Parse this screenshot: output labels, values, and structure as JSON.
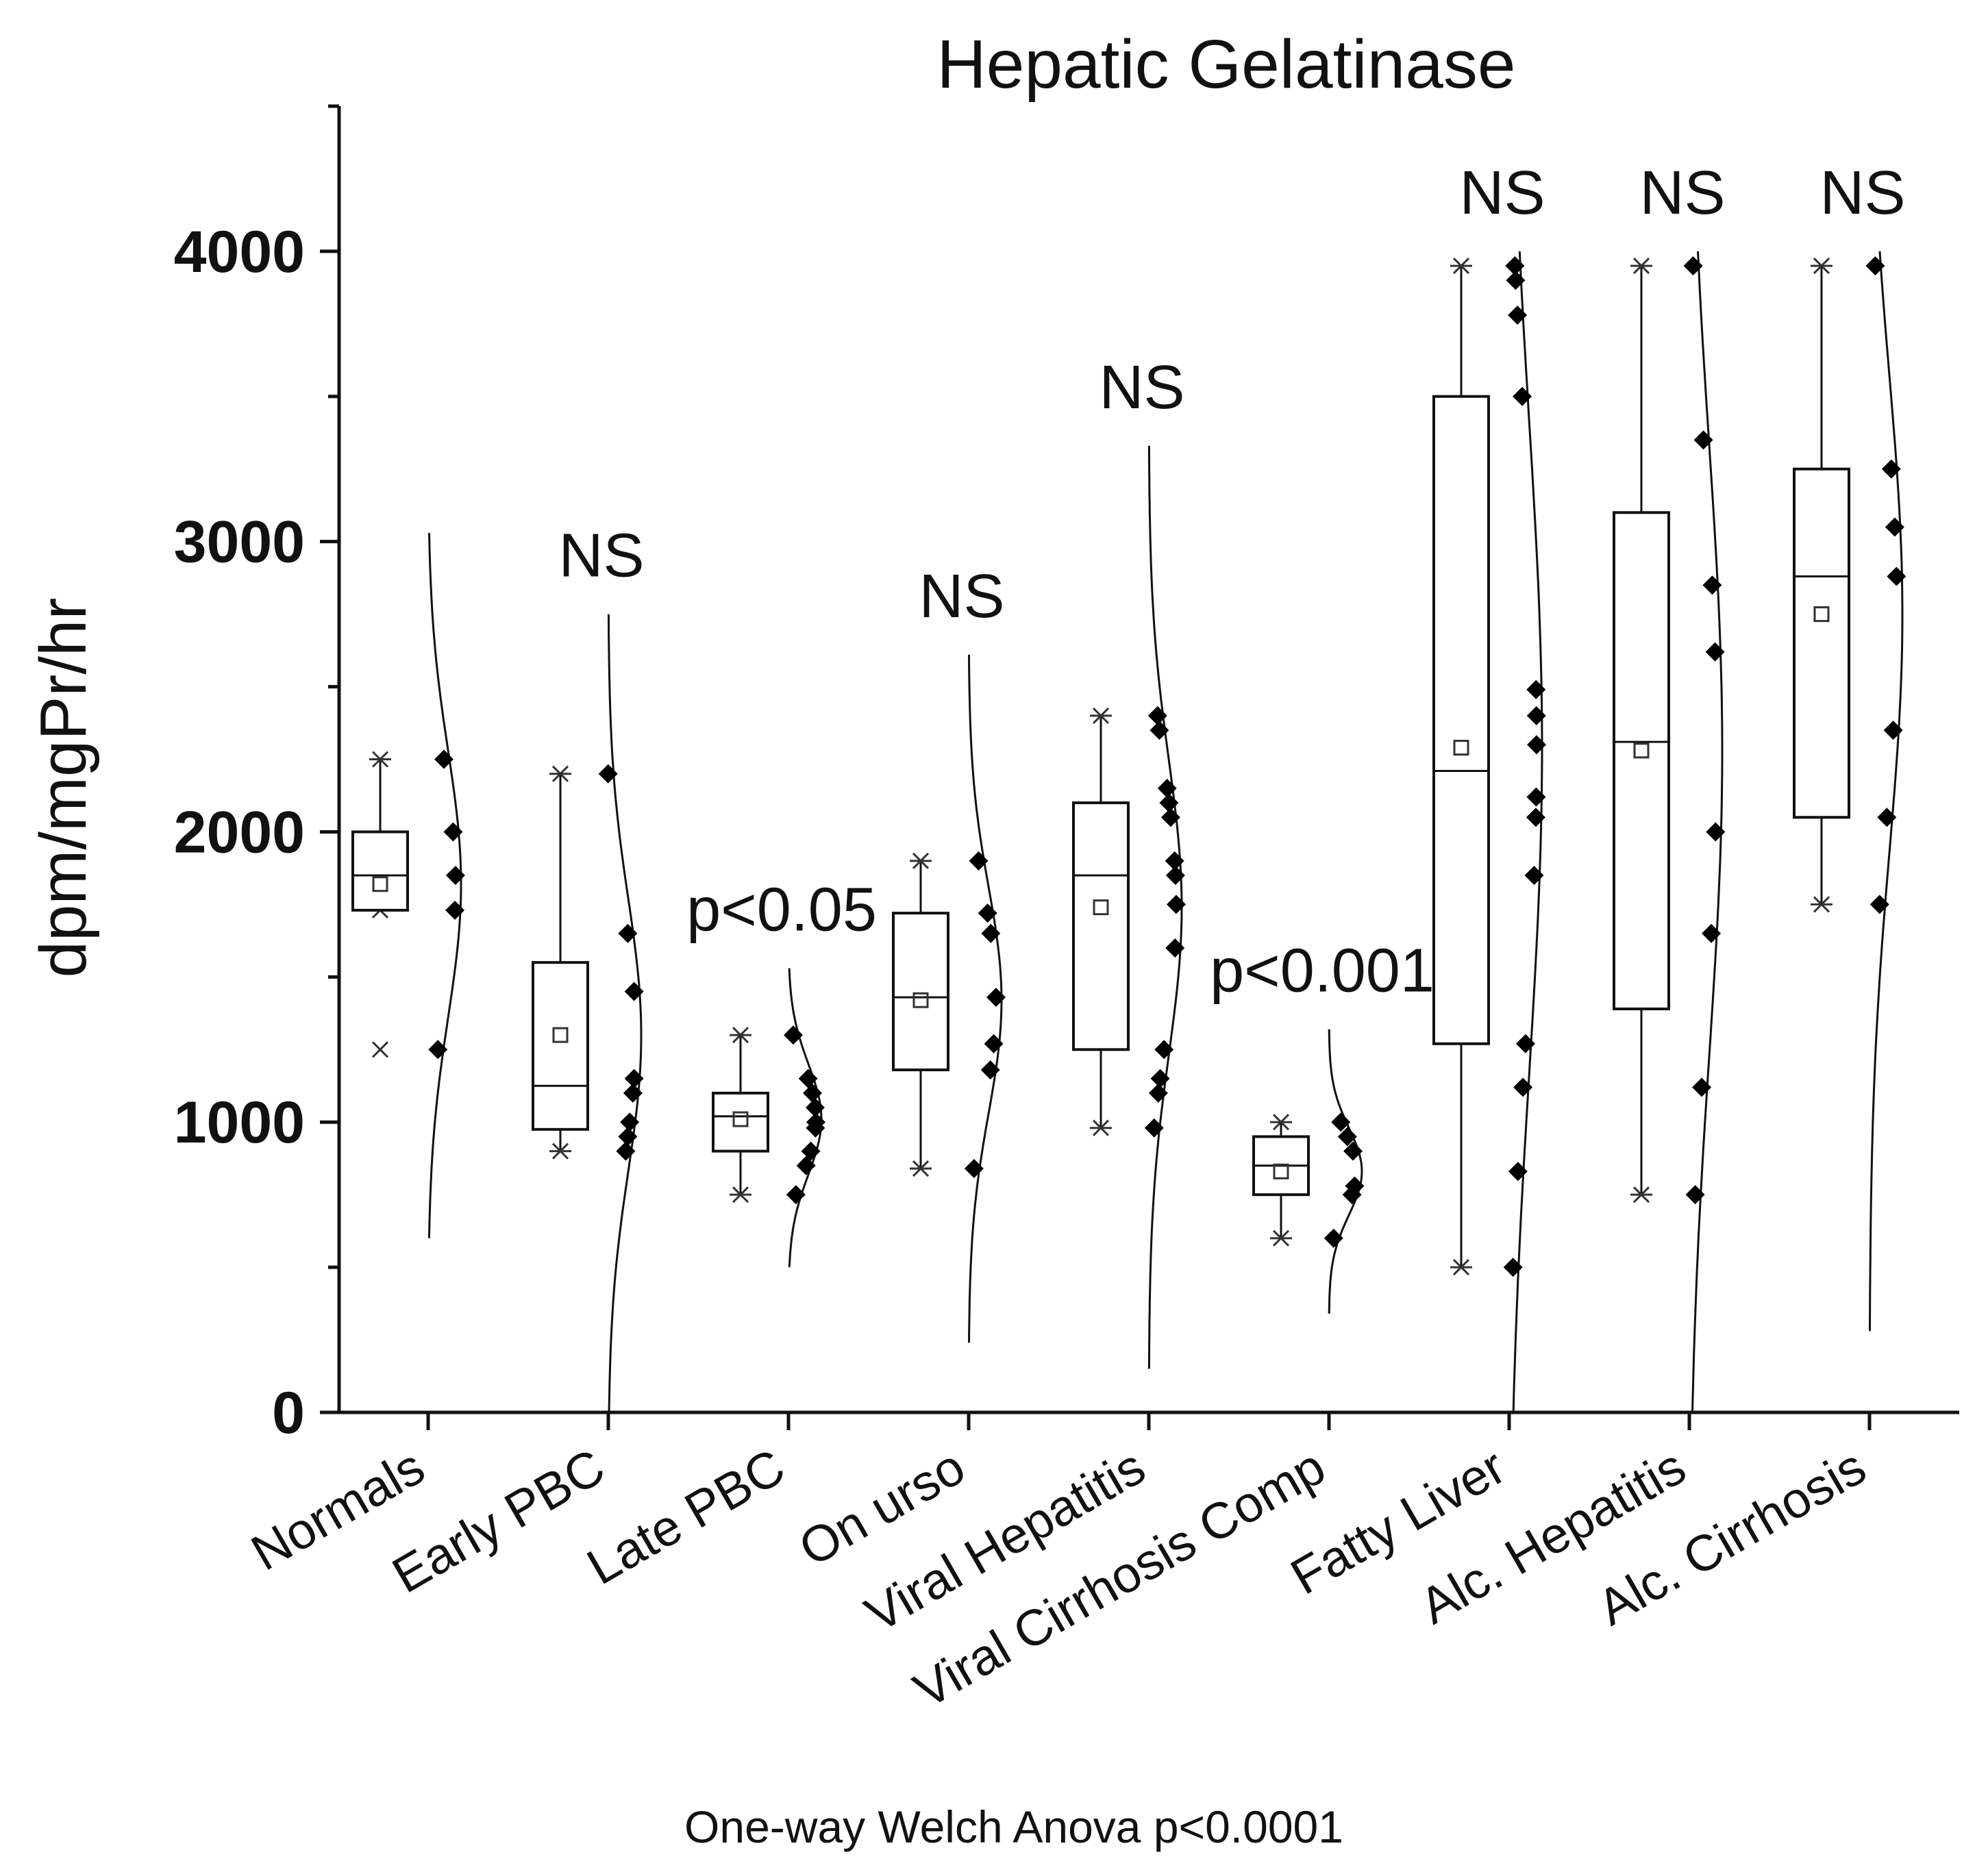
{
  "chart_data": {
    "type": "box",
    "title": "Hepatic Gelatinase",
    "ylabel": "dpm/mgPr/hr",
    "xlabel": "",
    "ylim": [
      0,
      4500
    ],
    "yticks": [
      0,
      1000,
      2000,
      3000,
      4000
    ],
    "yticks_minor": [
      500,
      1500,
      2500,
      3500,
      4500
    ],
    "footnote": "One-way Welch Anova p<0.0001",
    "groups": [
      {
        "name": "Normals",
        "sig": "",
        "q1": 1730,
        "median": 1850,
        "q3": 2000,
        "mean": 1820,
        "whisker_low": 1730,
        "whisker_high": 2250,
        "outliers_low": [
          1250
        ],
        "points": [
          2250,
          2000,
          1850,
          1730,
          1250
        ],
        "curve_low": 600,
        "curve_high": 3030,
        "curve_sd": 460
      },
      {
        "name": "Early PBC",
        "sig": "NS",
        "q1": 975,
        "median": 1125,
        "q3": 1550,
        "mean": 1300,
        "whisker_low": 900,
        "whisker_high": 2200,
        "outliers_low": [],
        "points": [
          2200,
          1650,
          1450,
          1150,
          1100,
          1000,
          950,
          900
        ],
        "curve_low": 0,
        "curve_high": 2750,
        "curve_sd": 470
      },
      {
        "name": "Late PBC",
        "sig": "p<0.05",
        "q1": 900,
        "median": 1020,
        "q3": 1100,
        "mean": 1010,
        "whisker_low": 750,
        "whisker_high": 1300,
        "outliers_low": [],
        "points": [
          1300,
          1150,
          1100,
          1050,
          1000,
          980,
          900,
          850,
          750
        ],
        "curve_low": 500,
        "curve_high": 1530,
        "curve_sd": 190
      },
      {
        "name": "On urso",
        "sig": "NS",
        "q1": 1180,
        "median": 1430,
        "q3": 1720,
        "mean": 1420,
        "whisker_low": 840,
        "whisker_high": 1900,
        "outliers_low": [],
        "points": [
          1900,
          1720,
          1650,
          1430,
          1270,
          1180,
          840
        ],
        "curve_low": 240,
        "curve_high": 2610,
        "curve_sd": 390
      },
      {
        "name": "Viral Hepatitis",
        "sig": "NS",
        "q1": 1250,
        "median": 1850,
        "q3": 2100,
        "mean": 1740,
        "whisker_low": 980,
        "whisker_high": 2400,
        "outliers_low": [],
        "points": [
          2400,
          2350,
          2150,
          2100,
          2050,
          1900,
          1850,
          1750,
          1600,
          1250,
          1150,
          1100,
          980
        ],
        "curve_low": 150,
        "curve_high": 3330,
        "curve_sd": 510
      },
      {
        "name": "Viral Cirrhosis Comp",
        "sig": "p<0.001",
        "q1": 750,
        "median": 850,
        "q3": 950,
        "mean": 830,
        "whisker_low": 600,
        "whisker_high": 1000,
        "outliers_low": [],
        "points": [
          1000,
          950,
          900,
          780,
          750,
          600
        ],
        "curve_low": 340,
        "curve_high": 1320,
        "curve_sd": 150
      },
      {
        "name": "Fatty Liver",
        "sig": "NS",
        "q1": 1270,
        "median": 2210,
        "q3": 3500,
        "mean": 2290,
        "whisker_low": 500,
        "whisker_high": 3950,
        "outliers_low": [],
        "points": [
          3950,
          3900,
          3780,
          3500,
          2490,
          2400,
          2300,
          2120,
          2050,
          1850,
          1270,
          1120,
          830,
          500
        ],
        "curve_low": 0,
        "curve_high": 4000,
        "curve_sd": 1130
      },
      {
        "name": "Alc. Hepatitis",
        "sig": "NS",
        "q1": 1390,
        "median": 2310,
        "q3": 3100,
        "mean": 2280,
        "whisker_low": 750,
        "whisker_high": 3950,
        "outliers_low": [],
        "points": [
          3950,
          3350,
          2850,
          2620,
          2000,
          1650,
          1120,
          750
        ],
        "curve_low": 0,
        "curve_high": 4000,
        "curve_sd": 1050
      },
      {
        "name": "Alc. Cirrhosis",
        "sig": "NS",
        "q1": 2050,
        "median": 2880,
        "q3": 3250,
        "mean": 2750,
        "whisker_low": 1750,
        "whisker_high": 3950,
        "outliers_low": [],
        "points": [
          3950,
          3250,
          3050,
          2880,
          2350,
          2050,
          1750
        ],
        "curve_low": 280,
        "curve_high": 4000,
        "curve_sd": 820
      }
    ]
  }
}
